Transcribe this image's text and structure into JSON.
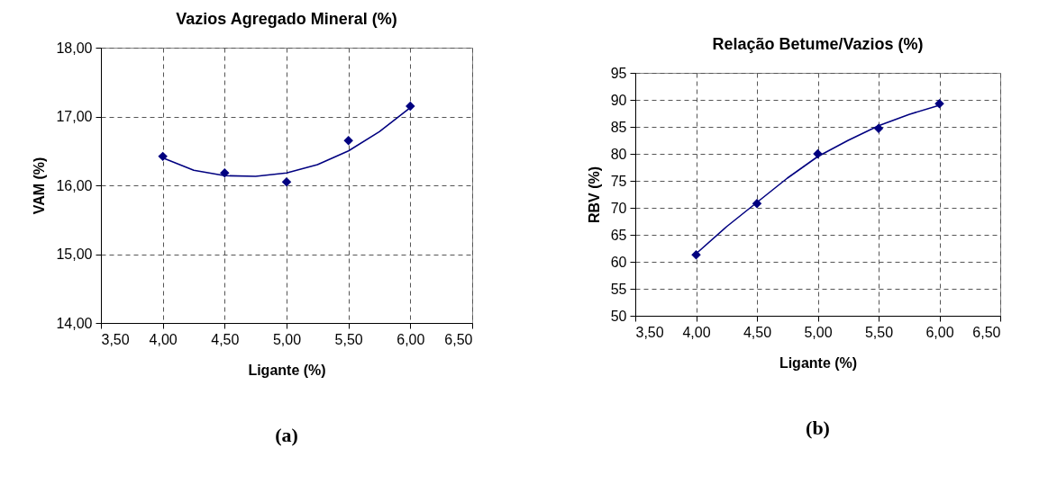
{
  "chart_data": [
    {
      "type": "scatter",
      "title": "Vazios Agregado Mineral (%)",
      "xlabel": "Ligante (%)",
      "ylabel": "VAM (%)",
      "annotations": [
        "(a)"
      ],
      "x": [
        4,
        4.5,
        5,
        5.5,
        6
      ],
      "series": [
        {
          "color": "#000080",
          "marker": "diamond",
          "values": [
            16.42,
            16.18,
            16.05,
            16.65,
            17.15
          ]
        },
        {
          "type": "line",
          "color": "#000080",
          "x": [
            4,
            4.25,
            4.5,
            4.75,
            5,
            5.25,
            5.5,
            5.75,
            6
          ],
          "values": [
            16.4,
            16.22,
            16.14,
            16.13,
            16.18,
            16.3,
            16.5,
            16.78,
            17.13
          ]
        }
      ],
      "xlim": [
        3.5,
        6.5
      ],
      "xticks": [
        {
          "value": 3.5,
          "label": "3,50"
        },
        {
          "value": 4,
          "label": "4,00"
        },
        {
          "value": 4.5,
          "label": "4,50"
        },
        {
          "value": 5,
          "label": "5,00"
        },
        {
          "value": 5.5,
          "label": "5,50"
        },
        {
          "value": 6,
          "label": "6,00"
        },
        {
          "value": 6.5,
          "label": "6,50"
        }
      ],
      "ylim": [
        14,
        18
      ],
      "yticks": [
        {
          "value": 14,
          "label": "14,00"
        },
        {
          "value": 15,
          "label": "15,00"
        },
        {
          "value": 16,
          "label": "16,00"
        },
        {
          "value": 17,
          "label": "17,00"
        },
        {
          "value": 18,
          "label": "18,00"
        }
      ],
      "grid": true
    },
    {
      "type": "scatter",
      "title": "Relação Betume/Vazios (%)",
      "xlabel": "Ligante (%)",
      "ylabel": "RBV (%)",
      "annotations": [
        "(b)"
      ],
      "x": [
        4,
        4.5,
        5,
        5.5,
        6
      ],
      "series": [
        {
          "color": "#000080",
          "marker": "diamond",
          "values": [
            61.3,
            70.8,
            80.0,
            84.7,
            89.3
          ]
        },
        {
          "type": "line",
          "color": "#000080",
          "x": [
            4,
            4.25,
            4.5,
            4.75,
            5,
            5.25,
            5.5,
            5.75,
            6
          ],
          "values": [
            61.5,
            66.5,
            71.0,
            75.5,
            79.5,
            82.5,
            85.2,
            87.3,
            89.0
          ]
        }
      ],
      "xlim": [
        3.5,
        6.5
      ],
      "xticks": [
        {
          "value": 3.5,
          "label": "3,50"
        },
        {
          "value": 4,
          "label": "4,00"
        },
        {
          "value": 4.5,
          "label": "4,50"
        },
        {
          "value": 5,
          "label": "5,00"
        },
        {
          "value": 5.5,
          "label": "5,50"
        },
        {
          "value": 6,
          "label": "6,00"
        },
        {
          "value": 6.5,
          "label": "6,50"
        }
      ],
      "ylim": [
        50,
        95
      ],
      "yticks": [
        50,
        55,
        60,
        65,
        70,
        75,
        80,
        85,
        90,
        95
      ],
      "grid": true
    }
  ]
}
